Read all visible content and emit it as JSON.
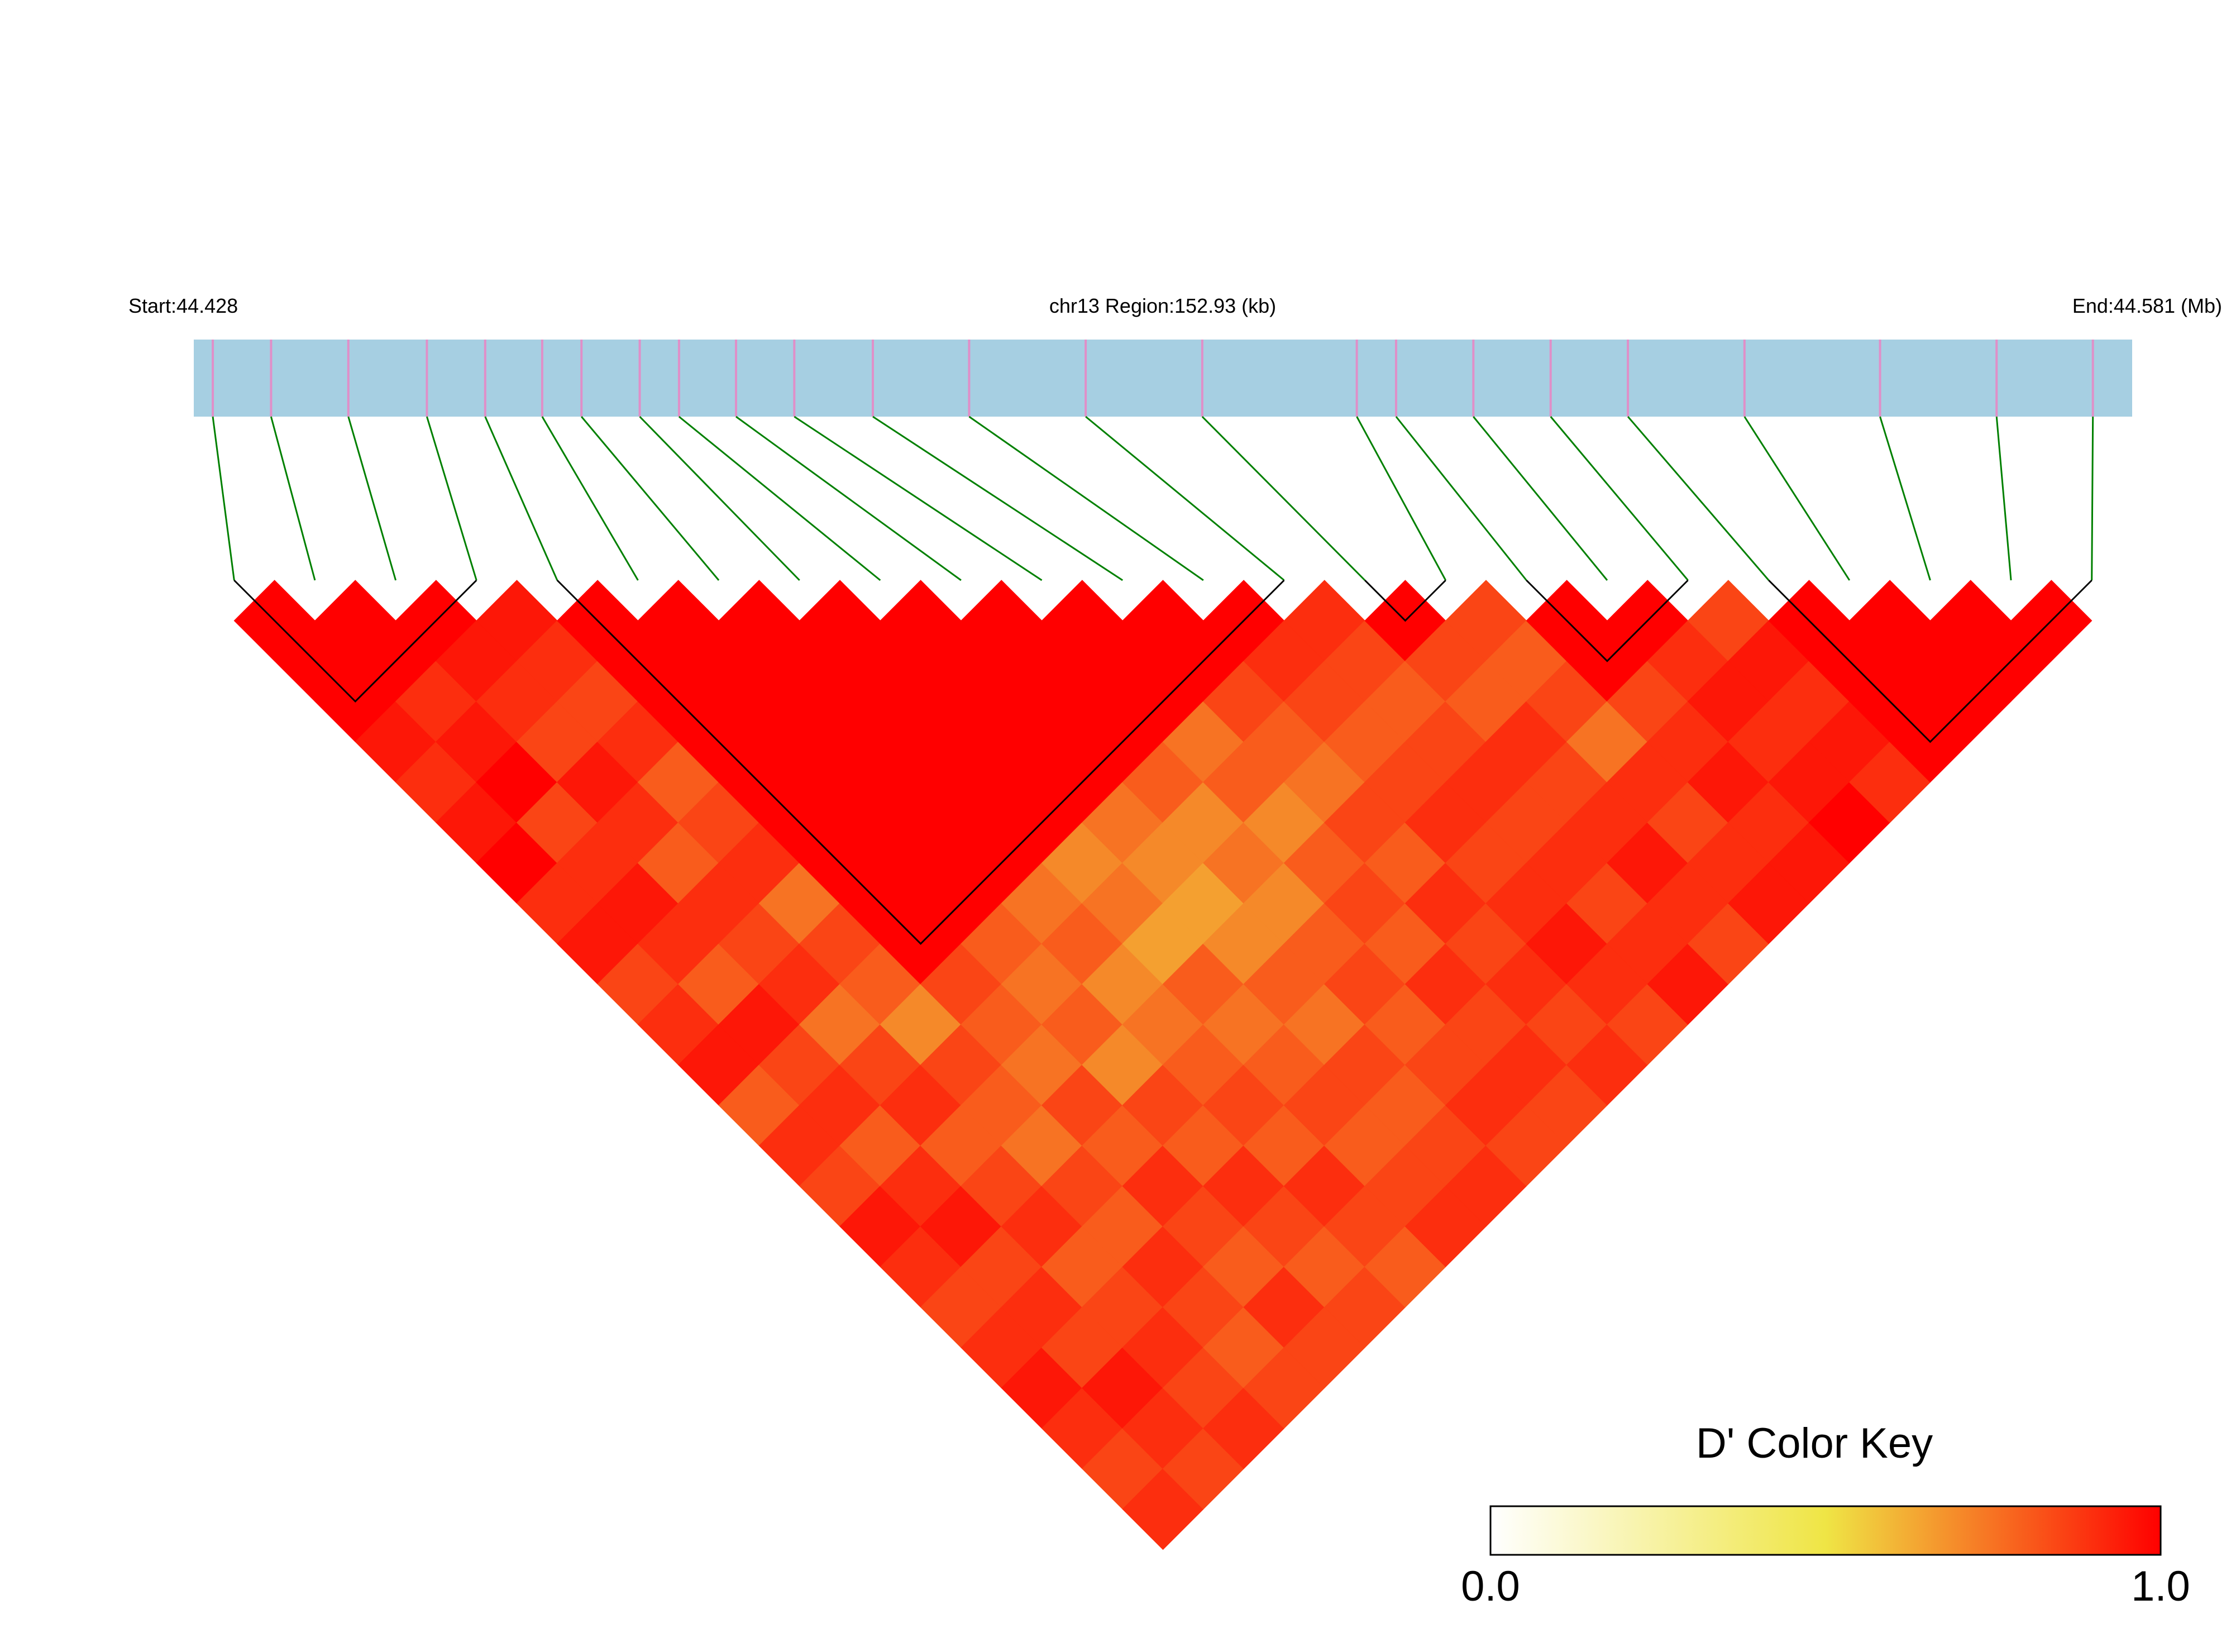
{
  "chart_data": {
    "type": "ld_heatmap",
    "start_label": "Start:44.428",
    "region_label": "chr13 Region:152.93 (kb)",
    "end_label": "End:44.581 (Mb)",
    "key_title": "D' Color Key",
    "xlim": [
      44.428,
      44.581
    ],
    "positions": [
      44.4295,
      44.4341,
      44.4402,
      44.4464,
      44.451,
      44.4555,
      44.4586,
      44.4632,
      44.4663,
      44.4708,
      44.4754,
      44.4816,
      44.4892,
      44.4984,
      44.5076,
      44.5198,
      44.5229,
      44.529,
      44.5351,
      44.5412,
      44.5504,
      44.5611,
      44.5703,
      44.5779
    ],
    "matrix": [
      [
        1,
        1,
        1,
        0.95,
        0.9,
        0.95,
        1,
        0.9,
        0.95,
        0.85,
        0.9,
        0.95,
        0.8,
        0.9,
        0.85,
        0.95,
        0.9,
        0.85,
        0.9,
        0.95,
        0.9,
        0.85,
        0.9
      ],
      [
        1,
        1,
        0.9,
        0.95,
        1,
        0.85,
        0.9,
        0.95,
        0.9,
        0.8,
        0.95,
        0.85,
        0.9,
        0.8,
        0.9,
        0.95,
        0.85,
        0.9,
        0.85,
        0.95,
        0.9,
        0.85
      ],
      [
        1,
        0.95,
        0.9,
        0.85,
        0.95,
        0.9,
        0.8,
        0.9,
        0.85,
        0.9,
        0.75,
        0.85,
        0.9,
        0.8,
        0.85,
        0.9,
        0.8,
        0.85,
        0.9,
        0.85,
        0.9
      ],
      [
        0.95,
        0.9,
        0.85,
        0.9,
        0.8,
        0.85,
        0.9,
        0.75,
        0.85,
        0.8,
        0.7,
        0.85,
        0.8,
        0.75,
        0.85,
        0.8,
        0.9,
        0.85,
        0.8,
        0.85
      ],
      [
        1,
        1,
        1,
        1,
        1,
        1,
        1,
        1,
        1,
        0.85,
        0.8,
        0.75,
        0.85,
        0.8,
        0.9,
        0.85,
        0.8,
        0.9,
        0.85
      ],
      [
        1,
        1,
        1,
        1,
        1,
        1,
        1,
        1,
        0.8,
        0.75,
        0.8,
        0.7,
        0.85,
        0.8,
        0.9,
        0.85,
        0.8,
        0.85
      ],
      [
        1,
        1,
        1,
        1,
        1,
        1,
        1,
        0.75,
        0.8,
        0.7,
        0.75,
        0.8,
        0.85,
        0.8,
        0.9,
        0.85,
        0.8
      ],
      [
        1,
        1,
        1,
        1,
        1,
        1,
        0.7,
        0.75,
        0.65,
        0.8,
        0.75,
        0.8,
        0.85,
        0.8,
        0.85,
        0.9
      ],
      [
        1,
        1,
        1,
        1,
        1,
        0.75,
        0.7,
        0.65,
        0.7,
        0.8,
        0.75,
        0.85,
        0.8,
        0.85,
        0.9
      ],
      [
        1,
        1,
        1,
        1,
        0.8,
        0.7,
        0.75,
        0.7,
        0.8,
        0.85,
        0.8,
        0.85,
        0.9,
        0.85
      ],
      [
        1,
        1,
        1,
        0.75,
        0.8,
        0.7,
        0.8,
        0.85,
        0.8,
        0.9,
        0.85,
        0.9,
        0.85
      ],
      [
        1,
        1,
        0.85,
        0.8,
        0.75,
        0.85,
        0.8,
        0.9,
        0.85,
        0.9,
        0.85,
        0.9
      ],
      [
        1,
        0.9,
        0.85,
        0.8,
        0.85,
        0.9,
        0.85,
        0.9,
        0.95,
        0.9,
        0.85
      ],
      [
        0.9,
        0.85,
        0.8,
        0.85,
        0.9,
        0.85,
        0.9,
        0.85,
        0.9,
        0.95
      ],
      [
        1,
        0.85,
        0.8,
        0.9,
        0.85,
        0.9,
        0.95,
        0.9,
        0.85
      ],
      [
        0.85,
        0.8,
        0.85,
        0.75,
        0.9,
        0.85,
        0.9,
        0.95
      ],
      [
        1,
        1,
        0.85,
        0.9,
        0.95,
        0.9,
        0.95
      ],
      [
        1,
        0.9,
        0.95,
        0.9,
        0.95,
        1
      ],
      [
        0.85,
        0.95,
        0.9,
        0.95,
        0.9
      ],
      [
        1,
        1,
        1,
        1
      ],
      [
        1,
        1,
        1
      ],
      [
        1,
        1
      ],
      [
        1
      ]
    ],
    "blocks": [
      [
        0,
        3
      ],
      [
        4,
        13
      ],
      [
        14,
        15
      ],
      [
        16,
        18
      ],
      [
        19,
        23
      ]
    ],
    "colors": [
      "#ffffff",
      "#efe545",
      "#ff0000"
    ],
    "track_color": "#a6cfe2",
    "snp_color": "#e08fc8",
    "link_color": "#008000",
    "key_lim": [
      0,
      1
    ],
    "key_ticks": [
      {
        "value": 0,
        "label": "0.0"
      },
      {
        "value": 1,
        "label": "1.0"
      }
    ]
  }
}
